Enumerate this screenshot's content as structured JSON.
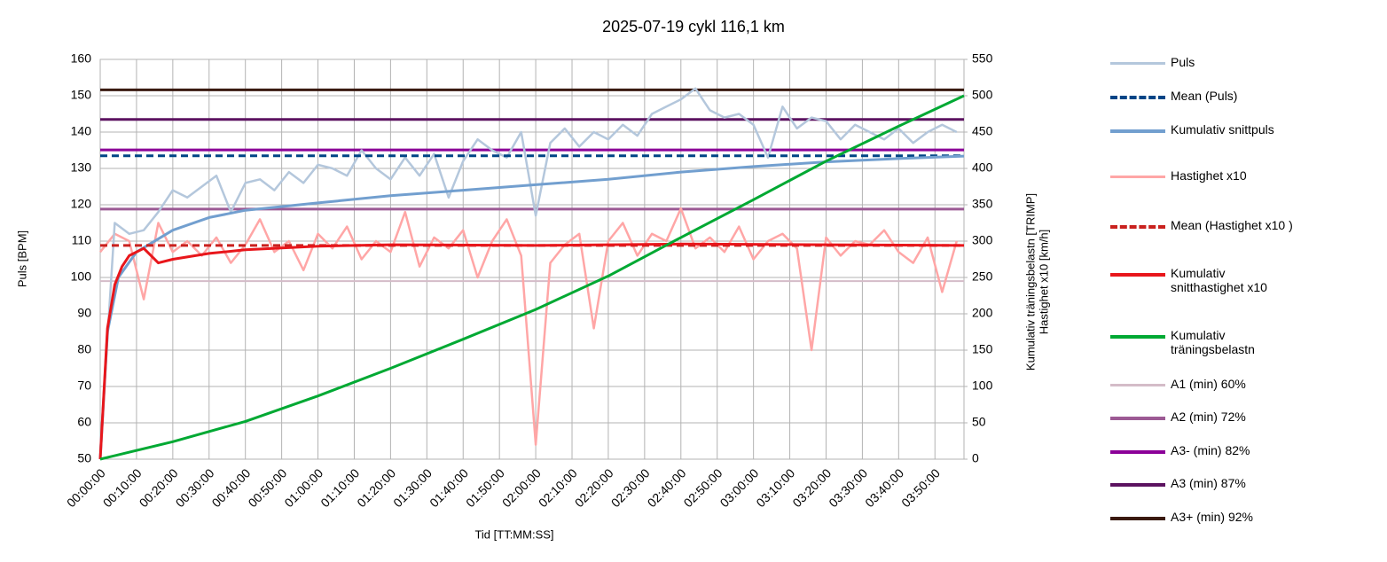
{
  "chart_data": {
    "type": "line",
    "title": "2025-07-19 cykl 116,1 km",
    "xlabel": "Tid [TT:MM:SS]",
    "ylabel": "Puls [BPM]",
    "y2label": [
      "Kumulativ träningsbelastn [TRIMP]",
      "Hastighet x10 [km/h]"
    ],
    "grid": true,
    "legend": "right",
    "xlim": [
      0,
      238
    ],
    "xticks": [
      {
        "value": 0,
        "label": "00:00:00"
      },
      {
        "value": 10,
        "label": "00:10:00"
      },
      {
        "value": 20,
        "label": "00:20:00"
      },
      {
        "value": 30,
        "label": "00:30:00"
      },
      {
        "value": 40,
        "label": "00:40:00"
      },
      {
        "value": 50,
        "label": "00:50:00"
      },
      {
        "value": 60,
        "label": "01:00:00"
      },
      {
        "value": 70,
        "label": "01:10:00"
      },
      {
        "value": 80,
        "label": "01:20:00"
      },
      {
        "value": 90,
        "label": "01:30:00"
      },
      {
        "value": 100,
        "label": "01:40:00"
      },
      {
        "value": 110,
        "label": "01:50:00"
      },
      {
        "value": 120,
        "label": "02:00:00"
      },
      {
        "value": 130,
        "label": "02:10:00"
      },
      {
        "value": 140,
        "label": "02:20:00"
      },
      {
        "value": 150,
        "label": "02:30:00"
      },
      {
        "value": 160,
        "label": "02:40:00"
      },
      {
        "value": 170,
        "label": "02:50:00"
      },
      {
        "value": 180,
        "label": "03:00:00"
      },
      {
        "value": 190,
        "label": "03:10:00"
      },
      {
        "value": 200,
        "label": "03:20:00"
      },
      {
        "value": 210,
        "label": "03:30:00"
      },
      {
        "value": 220,
        "label": "03:40:00"
      },
      {
        "value": 230,
        "label": "03:50:00"
      }
    ],
    "ylim": [
      50,
      160
    ],
    "yticks": [
      50,
      60,
      70,
      80,
      90,
      100,
      110,
      120,
      130,
      140,
      150,
      160
    ],
    "y2lim": [
      0,
      550
    ],
    "y2ticks": [
      0,
      50,
      100,
      150,
      200,
      250,
      300,
      350,
      400,
      450,
      500,
      550
    ],
    "series": [
      {
        "name": "A1 (min) 60%",
        "color": "#d4bcc8",
        "width": 2,
        "x": [
          0,
          238
        ],
        "values": [
          99,
          99
        ]
      },
      {
        "name": "A2 (min) 72%",
        "color": "#9c5a94",
        "width": 3,
        "x": [
          0,
          238
        ],
        "values": [
          118.8,
          118.8
        ]
      },
      {
        "name": "A3- (min) 82%",
        "color": "#8b0098",
        "width": 3,
        "x": [
          0,
          238
        ],
        "values": [
          135.1,
          135.1
        ]
      },
      {
        "name": "A3 (min) 87%",
        "color": "#5c1260",
        "width": 3,
        "x": [
          0,
          238
        ],
        "values": [
          143.5,
          143.5
        ]
      },
      {
        "name": "A3+ (min) 92%",
        "color": "#3a1a10",
        "width": 3,
        "x": [
          0,
          238
        ],
        "values": [
          151.6,
          151.6
        ]
      },
      {
        "name": "Hastighet x10",
        "color": "#ffa6a6",
        "width": 2.5,
        "axis": "y2",
        "x": [
          0,
          4,
          8,
          12,
          16,
          20,
          24,
          28,
          32,
          36,
          40,
          44,
          48,
          52,
          56,
          60,
          64,
          68,
          72,
          76,
          80,
          84,
          88,
          92,
          96,
          100,
          104,
          108,
          112,
          116,
          120,
          124,
          128,
          132,
          136,
          140,
          144,
          148,
          152,
          156,
          160,
          164,
          168,
          172,
          176,
          180,
          184,
          188,
          192,
          196,
          200,
          204,
          208,
          212,
          216,
          220,
          224,
          228,
          232,
          236
        ],
        "values": [
          285,
          310,
          300,
          220,
          325,
          285,
          300,
          280,
          305,
          270,
          295,
          330,
          285,
          300,
          260,
          310,
          290,
          320,
          275,
          300,
          285,
          340,
          265,
          305,
          290,
          315,
          250,
          300,
          330,
          280,
          20,
          270,
          295,
          310,
          180,
          300,
          325,
          280,
          310,
          300,
          345,
          290,
          305,
          285,
          320,
          275,
          300,
          310,
          290,
          150,
          305,
          280,
          300,
          295,
          315,
          285,
          270,
          305,
          230,
          300
        ]
      },
      {
        "name": "Puls",
        "color": "#b4c7dc",
        "width": 2.5,
        "x": [
          0,
          4,
          8,
          12,
          16,
          20,
          24,
          28,
          32,
          36,
          40,
          44,
          48,
          52,
          56,
          60,
          64,
          68,
          72,
          76,
          80,
          84,
          88,
          92,
          96,
          100,
          104,
          108,
          112,
          116,
          120,
          124,
          128,
          132,
          136,
          140,
          144,
          148,
          152,
          156,
          160,
          164,
          168,
          172,
          176,
          180,
          184,
          188,
          192,
          196,
          200,
          204,
          208,
          212,
          216,
          220,
          224,
          228,
          232,
          236
        ],
        "values": [
          52,
          115,
          112,
          113,
          118,
          124,
          122,
          125,
          128,
          118,
          126,
          127,
          124,
          129,
          126,
          131,
          130,
          128,
          135,
          130,
          127,
          133,
          128,
          134,
          122,
          132,
          138,
          135,
          133,
          140,
          117,
          137,
          141,
          136,
          140,
          138,
          142,
          139,
          145,
          147,
          149,
          152,
          146,
          144,
          145,
          142,
          133,
          147,
          141,
          144,
          143,
          138,
          142,
          140,
          138,
          141,
          137,
          140,
          142,
          140
        ]
      },
      {
        "name": "Mean (Puls)",
        "color": "#004586",
        "width": 3,
        "dashed": true,
        "x": [
          0,
          238
        ],
        "values": [
          133.5,
          133.5
        ]
      },
      {
        "name": "Kumulativ snittpuls",
        "color": "#729fcf",
        "width": 3,
        "x": [
          0,
          2,
          5,
          10,
          20,
          30,
          40,
          60,
          80,
          100,
          120,
          140,
          160,
          180,
          200,
          220,
          238
        ],
        "values": [
          50,
          85,
          100,
          107,
          113,
          116.5,
          118.5,
          120.5,
          122.5,
          124,
          125.5,
          127,
          129,
          130.5,
          131.8,
          132.7,
          133.4
        ]
      },
      {
        "name": "Mean (Hastighet x10 )",
        "color": "#c9211e",
        "width": 3,
        "dashed": true,
        "axis": "y2",
        "x": [
          0,
          238
        ],
        "values": [
          294,
          294
        ]
      },
      {
        "name": "Kumulativ snitthastighet x10",
        "color": "#e8161b",
        "width": 3,
        "axis": "y2",
        "x": [
          0,
          2,
          4,
          6,
          8,
          12,
          16,
          20,
          30,
          40,
          60,
          80,
          120,
          160,
          200,
          238
        ],
        "values": [
          0,
          180,
          240,
          265,
          280,
          290,
          270,
          275,
          283,
          288,
          293,
          295,
          294,
          296,
          295,
          294
        ]
      },
      {
        "name": "Kumulativ träningsbelastn",
        "color": "#00a933",
        "width": 3,
        "axis": "y2",
        "x": [
          0,
          20,
          40,
          60,
          80,
          100,
          120,
          140,
          160,
          180,
          200,
          220,
          238
        ],
        "values": [
          0,
          24,
          52,
          87,
          125,
          165,
          206,
          252,
          305,
          357,
          410,
          458,
          500
        ]
      }
    ],
    "legend_order": [
      6,
      7,
      8,
      5,
      9,
      10,
      11,
      0,
      1,
      2,
      3,
      4
    ]
  }
}
